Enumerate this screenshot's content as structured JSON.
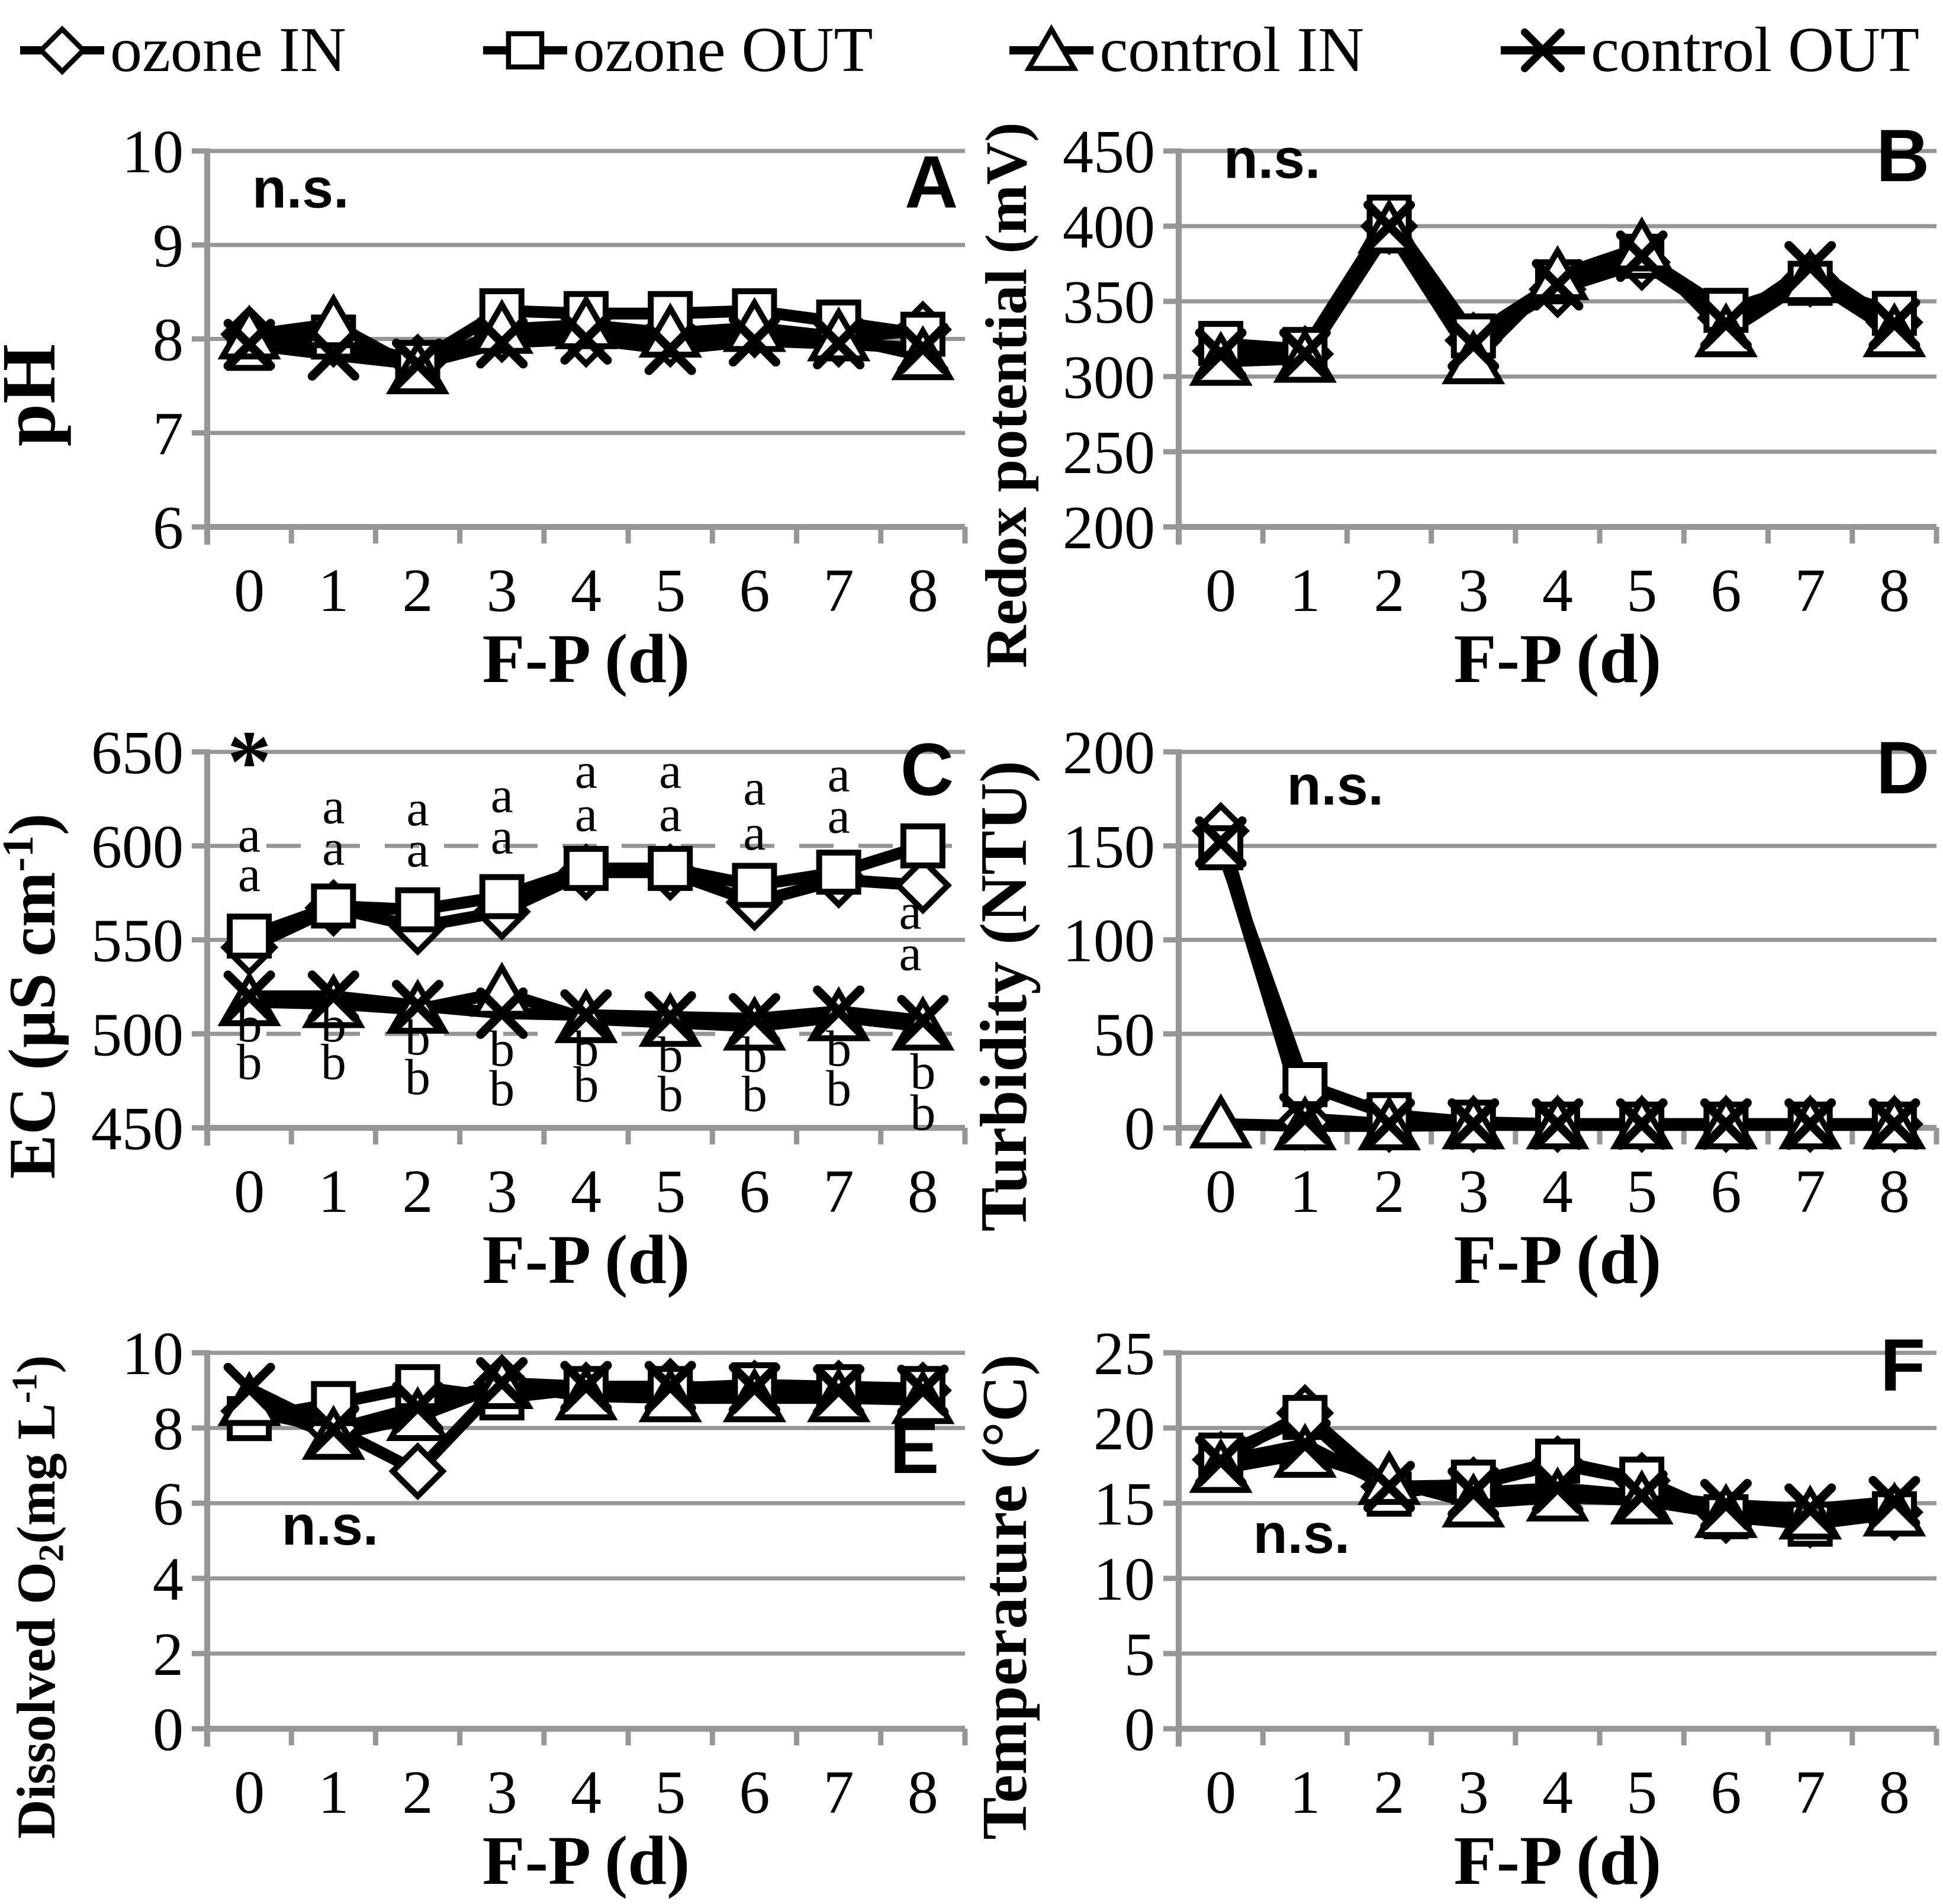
{
  "colors": {
    "series": "#000000",
    "grid": "#969696",
    "background": "#ffffff",
    "text": "#000000"
  },
  "legend": {
    "items": [
      {
        "label": "ozone IN",
        "marker": "diamond"
      },
      {
        "label": "ozone OUT",
        "marker": "square"
      },
      {
        "label": "control IN",
        "marker": "triangle"
      },
      {
        "label": "control OUT",
        "marker": "x"
      }
    ]
  },
  "chart_data": [
    {
      "id": "A",
      "type": "line",
      "panel_letter": "A",
      "annotation": "n.s.",
      "annotation_pos": [
        0.35,
        9.4
      ],
      "letter_pos": [
        8.1,
        9.4
      ],
      "xlabel": "F-P (d)",
      "ylabel": "pH",
      "ylabel_segments": [
        {
          "t": "pH"
        }
      ],
      "x": [
        0,
        1,
        2,
        3,
        4,
        5,
        6,
        7,
        8
      ],
      "ylim": [
        6,
        10
      ],
      "ystep": 1,
      "legend_position": "none",
      "grid": "on",
      "series": [
        {
          "name": "ozone IN",
          "marker": "diamond",
          "values": [
            8.05,
            8.0,
            7.75,
            8.05,
            8.0,
            8.0,
            8.1,
            8.0,
            8.1
          ]
        },
        {
          "name": "ozone OUT",
          "marker": "square",
          "values": [
            7.9,
            8.02,
            7.75,
            8.3,
            8.27,
            8.27,
            8.3,
            8.18,
            8.05
          ]
        },
        {
          "name": "control IN",
          "marker": "triangle",
          "values": [
            8.04,
            8.16,
            7.67,
            8.1,
            8.15,
            8.06,
            8.12,
            8.02,
            7.82
          ]
        },
        {
          "name": "control OUT",
          "marker": "x",
          "values": [
            7.94,
            7.83,
            7.73,
            7.96,
            8.0,
            7.89,
            7.98,
            7.95,
            7.9
          ]
        }
      ]
    },
    {
      "id": "B",
      "type": "line",
      "panel_letter": "B",
      "annotation": "n.s.",
      "annotation_pos": [
        0.35,
        432
      ],
      "letter_pos": [
        8.1,
        430
      ],
      "xlabel": "F-P (d)",
      "ylabel": "Redox potential (mV)",
      "ylabel_segments": [
        {
          "t": "Redox potential (mV)"
        }
      ],
      "x": [
        0,
        1,
        2,
        3,
        4,
        5,
        6,
        7,
        8
      ],
      "ylim": [
        200,
        450
      ],
      "ystep": 50,
      "legend_position": "none",
      "grid": "on",
      "series": [
        {
          "name": "ozone IN",
          "marker": "diamond",
          "values": [
            317,
            315,
            400,
            324,
            358,
            376,
            339,
            365,
            336
          ]
        },
        {
          "name": "ozone OUT",
          "marker": "square",
          "values": [
            322,
            318,
            406,
            327,
            363,
            380,
            344,
            362,
            342
          ]
        },
        {
          "name": "control IN",
          "marker": "triangle",
          "values": [
            310,
            312,
            398,
            311,
            367,
            386,
            329,
            365,
            329
          ]
        },
        {
          "name": "control OUT",
          "marker": "x",
          "values": [
            315,
            315,
            400,
            321,
            361,
            380,
            335,
            373,
            335
          ]
        }
      ]
    },
    {
      "id": "C",
      "type": "line",
      "panel_letter": "C",
      "annotation": "*",
      "annotation_pos": [
        0,
        629
      ],
      "letter_pos": [
        8.05,
        627
      ],
      "xlabel": "F-P (d)",
      "ylabel": "EC (µS cm-1)",
      "ylabel_segments": [
        {
          "t": "EC (µS cm"
        },
        {
          "t": "-1",
          "sup": true
        },
        {
          "t": ")"
        }
      ],
      "x": [
        0,
        1,
        2,
        3,
        4,
        5,
        6,
        7,
        8
      ],
      "ylim": [
        450,
        650
      ],
      "ystep": 50,
      "legend_position": "none",
      "grid": "on",
      "grid_dashed": [
        600,
        500
      ],
      "series": [
        {
          "name": "ozone IN",
          "marker": "diamond",
          "values": [
            546,
            567,
            557,
            565,
            586,
            586,
            570,
            582,
            579
          ]
        },
        {
          "name": "ozone OUT",
          "marker": "square",
          "values": [
            552,
            568,
            566,
            573,
            588,
            588,
            579,
            586,
            600
          ]
        },
        {
          "name": "control IN",
          "marker": "triangle",
          "values": [
            517,
            516,
            513,
            522,
            508,
            506,
            504,
            509,
            504
          ]
        },
        {
          "name": "control OUT",
          "marker": "x",
          "values": [
            520,
            520,
            515,
            511,
            510,
            509,
            508,
            512,
            507
          ]
        }
      ],
      "sig_letters": {
        "asterisk": [
          0,
          629
        ],
        "a": [
          [
            597,
            576
          ],
          [
            612,
            590
          ],
          [
            611,
            589
          ],
          [
            618,
            596
          ],
          [
            631,
            608
          ],
          [
            631,
            608
          ],
          [
            622,
            598
          ],
          [
            629,
            607
          ],
          [
            556,
            534
          ]
        ],
        "b": [
          [
            496,
            476
          ],
          [
            496,
            476
          ],
          [
            489,
            468
          ],
          [
            483,
            462
          ],
          [
            483,
            464
          ],
          [
            480,
            459
          ],
          [
            480,
            459
          ],
          [
            483,
            462
          ],
          [
            471,
            449
          ]
        ]
      }
    },
    {
      "id": "D",
      "type": "line",
      "panel_letter": "D",
      "annotation": "n.s.",
      "annotation_pos": [
        1.1,
        172
      ],
      "letter_pos": [
        8.1,
        178
      ],
      "xlabel": "F-P (d)",
      "ylabel": "Turbidity (NTU)",
      "ylabel_segments": [
        {
          "t": "Turbidity (NTU)"
        }
      ],
      "x": [
        0,
        1,
        2,
        3,
        4,
        5,
        6,
        7,
        8
      ],
      "ylim": [
        0,
        200
      ],
      "ystep": 50,
      "legend_position": "none",
      "grid": "on",
      "series": [
        {
          "name": "ozone IN",
          "marker": "diamond",
          "values": [
            158,
            3,
            2,
            2,
            2,
            2,
            2,
            2,
            2
          ]
        },
        {
          "name": "ozone OUT",
          "marker": "square",
          "values": [
            149,
            23,
            7,
            3,
            2,
            2,
            2,
            2,
            2
          ]
        },
        {
          "name": "control IN",
          "marker": "triangle",
          "values": [
            2,
            1,
            1,
            1.5,
            1.5,
            1.5,
            1.5,
            1.5,
            1.5
          ]
        },
        {
          "name": "control OUT",
          "marker": "x",
          "values": [
            152,
            5,
            2,
            2,
            2,
            2,
            2,
            2,
            2
          ]
        }
      ]
    },
    {
      "id": "E",
      "type": "line",
      "panel_letter": "E",
      "annotation": "n.s.",
      "annotation_pos": [
        0.7,
        4.9
      ],
      "letter_pos": [
        7.9,
        6.8
      ],
      "xlabel": "F-P (d)",
      "ylabel": "Dissolved O2(mg L-1)",
      "ylabel_segments": [
        {
          "t": "Dissolved O"
        },
        {
          "t": "2",
          "sub": true
        },
        {
          "t": "(mg L"
        },
        {
          "t": "-1",
          "sup": true
        },
        {
          "t": ")"
        }
      ],
      "x": [
        0,
        1,
        2,
        3,
        4,
        5,
        6,
        7,
        8
      ],
      "ylim": [
        0,
        10
      ],
      "ystep": 2,
      "legend_position": "none",
      "grid": "on",
      "series": [
        {
          "name": "ozone IN",
          "marker": "diamond",
          "values": [
            8.45,
            8.0,
            6.85,
            9.2,
            9.0,
            9.1,
            9.05,
            9.05,
            9.0
          ]
        },
        {
          "name": "ozone OUT",
          "marker": "square",
          "values": [
            8.25,
            8.65,
            9.1,
            8.8,
            9.05,
            9.05,
            9.15,
            9.1,
            9.05
          ]
        },
        {
          "name": "control IN",
          "marker": "triangle",
          "values": [
            8.7,
            7.8,
            8.3,
            9.15,
            8.85,
            8.8,
            8.8,
            8.8,
            8.75
          ]
        },
        {
          "name": "control OUT",
          "marker": "x",
          "values": [
            9.05,
            7.95,
            8.55,
            9.2,
            9.1,
            9.1,
            9.05,
            9.0,
            9.0
          ]
        }
      ]
    },
    {
      "id": "F",
      "type": "line",
      "panel_letter": "F",
      "annotation": "n.s.",
      "annotation_pos": [
        0.7,
        11.7
      ],
      "letter_pos": [
        8.1,
        22.5
      ],
      "xlabel": "F-P (d)",
      "ylabel": "Temperature (°C)",
      "ylabel_segments": [
        {
          "t": "Temperature (°C)"
        }
      ],
      "x": [
        0,
        1,
        2,
        3,
        4,
        5,
        6,
        7,
        8
      ],
      "ylim": [
        0,
        25
      ],
      "ystep": 5,
      "legend_position": "none",
      "grid": "on",
      "series": [
        {
          "name": "ozone IN",
          "marker": "diamond",
          "values": [
            17.9,
            21.0,
            16.1,
            16.2,
            17.6,
            16.5,
            14.2,
            13.9,
            14.4
          ]
        },
        {
          "name": "ozone OUT",
          "marker": "square",
          "values": [
            18.2,
            20.7,
            15.6,
            16.4,
            17.8,
            16.6,
            14.1,
            13.6,
            14.3
          ]
        },
        {
          "name": "control IN",
          "marker": "triangle",
          "values": [
            17.3,
            18.3,
            16.5,
            15.0,
            15.4,
            15.2,
            14.3,
            14.2,
            14.4
          ]
        },
        {
          "name": "control OUT",
          "marker": "x",
          "values": [
            17.8,
            18.9,
            16.1,
            15.7,
            16.0,
            15.5,
            14.9,
            14.6,
            15.1
          ]
        }
      ]
    }
  ]
}
